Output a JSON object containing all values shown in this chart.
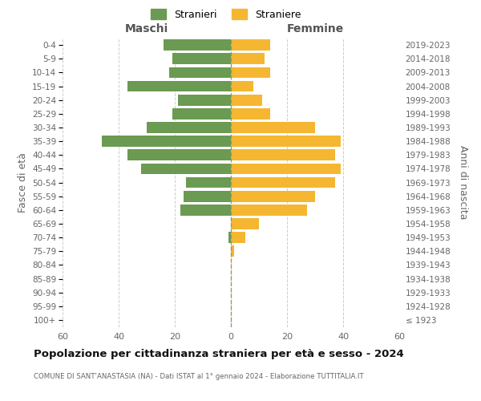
{
  "age_groups": [
    "100+",
    "95-99",
    "90-94",
    "85-89",
    "80-84",
    "75-79",
    "70-74",
    "65-69",
    "60-64",
    "55-59",
    "50-54",
    "45-49",
    "40-44",
    "35-39",
    "30-34",
    "25-29",
    "20-24",
    "15-19",
    "10-14",
    "5-9",
    "0-4"
  ],
  "birth_years": [
    "≤ 1923",
    "1924-1928",
    "1929-1933",
    "1934-1938",
    "1939-1943",
    "1944-1948",
    "1949-1953",
    "1954-1958",
    "1959-1963",
    "1964-1968",
    "1969-1973",
    "1974-1978",
    "1979-1983",
    "1984-1988",
    "1989-1993",
    "1994-1998",
    "1999-2003",
    "2004-2008",
    "2009-2013",
    "2014-2018",
    "2019-2023"
  ],
  "males": [
    0,
    0,
    0,
    0,
    0,
    0,
    1,
    0,
    18,
    17,
    16,
    32,
    37,
    46,
    30,
    21,
    19,
    37,
    22,
    21,
    24
  ],
  "females": [
    0,
    0,
    0,
    0,
    0,
    1,
    5,
    10,
    27,
    30,
    37,
    39,
    37,
    39,
    30,
    14,
    11,
    8,
    14,
    12,
    14
  ],
  "male_color": "#6b9a52",
  "female_color": "#f5b731",
  "background_color": "#ffffff",
  "grid_color": "#cccccc",
  "title": "Popolazione per cittadinanza straniera per età e sesso - 2024",
  "subtitle": "COMUNE DI SANT'ANASTASIA (NA) - Dati ISTAT al 1° gennaio 2024 - Elaborazione TUTTITALIA.IT",
  "ylabel_left": "Fasce di età",
  "ylabel_right": "Anni di nascita",
  "xlabel_maschi": "Maschi",
  "xlabel_femmine": "Femmine",
  "legend_male": "Stranieri",
  "legend_female": "Straniere",
  "xlim": 60,
  "bar_height": 0.8
}
